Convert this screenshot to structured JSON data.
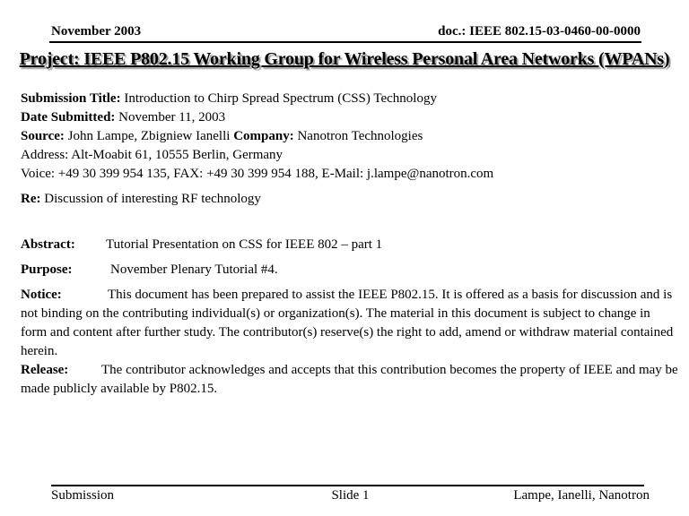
{
  "header": {
    "date": "November 2003",
    "doc_number": "doc.: IEEE 802.15-03-0460-00-0000"
  },
  "title": "Project: IEEE P802.15 Working Group for Wireless Personal Area Networks (WPANs)",
  "body": {
    "submission_title_label": "Submission Title:",
    "submission_title": "Introduction to Chirp Spread Spectrum (CSS) Technology",
    "date_submitted_label": "Date Submitted:",
    "date_submitted": "November 11, 2003",
    "source_label": "Source:",
    "source": "John Lampe, Zbigniew Ianelli",
    "company_label": "Company:",
    "company": "Nanotron Technologies",
    "address_line": "Address: Alt-Moabit 61, 10555 Berlin, Germany",
    "voice_line": "Voice: +49 30 399 954 135, FAX: +49 30 399 954 188, E-Mail: j.lampe@nanotron.com",
    "re_label": "Re:",
    "re_text": "Discussion of interesting RF technology",
    "abstract_label": "Abstract:",
    "abstract_text": "Tutorial Presentation on CSS for IEEE 802 – part 1",
    "purpose_label": "Purpose:",
    "purpose_text": "November Plenary Tutorial #4.",
    "notice_label": "Notice:",
    "notice_text": "This document has been prepared to assist the IEEE P802.15.  It is offered as a basis for discussion and is not binding on the contributing individual(s) or organization(s). The material in this document is subject to change in form and content after further study. The contributor(s) reserve(s) the right to add, amend or withdraw material contained herein.",
    "release_label": "Release:",
    "release_text": "The contributor acknowledges and accepts that this contribution becomes the property of IEEE and may be made publicly available by P802.15."
  },
  "footer": {
    "left": "Submission",
    "center": "Slide 1",
    "right": "Lampe, Ianelli, Nanotron"
  }
}
